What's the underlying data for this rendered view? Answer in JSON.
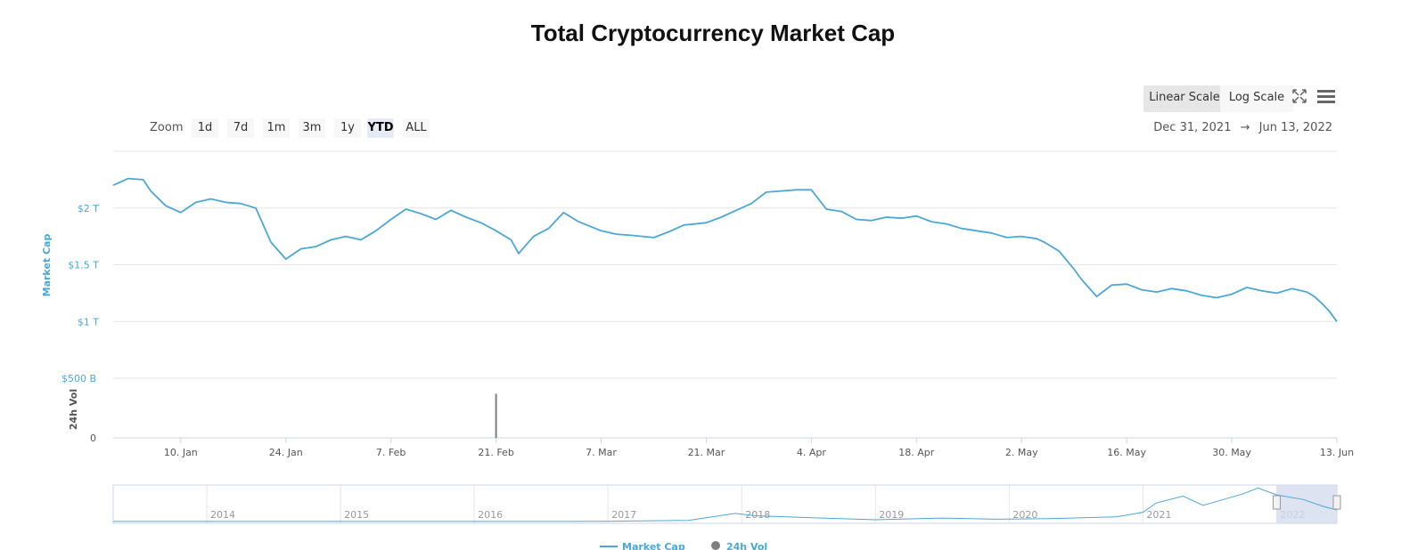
{
  "title": "Total Cryptocurrency Market Cap",
  "zoom": {
    "label": "Zoom",
    "buttons": [
      "1d",
      "7d",
      "1m",
      "3m",
      "1y",
      "YTD",
      "ALL"
    ],
    "selected": "YTD"
  },
  "scale_buttons": {
    "linear": "Linear Scale",
    "log": "Log Scale"
  },
  "range": {
    "from": "Dec 31, 2021",
    "arrow": "→",
    "to": "Jun 13, 2022"
  },
  "icons": {
    "fullscreen": "fullscreen-icon",
    "menu": "hamburger-menu-icon"
  },
  "colors": {
    "market_cap": "#4aa8d8",
    "volume": "#7f7f7f",
    "navigator_mask": "#d4dcee"
  },
  "chart_data": {
    "type": "line",
    "x_axis": {
      "tick_labels": [
        "10. Jan",
        "24. Jan",
        "7. Feb",
        "21. Feb",
        "7. Mar",
        "21. Mar",
        "4. Apr",
        "18. Apr",
        "2. May",
        "16. May",
        "30. May",
        "13. Jun"
      ],
      "tick_dates": [
        "2022-01-10",
        "2022-01-24",
        "2022-02-07",
        "2022-02-21",
        "2022-03-07",
        "2022-03-21",
        "2022-04-04",
        "2022-04-18",
        "2022-05-02",
        "2022-05-16",
        "2022-05-30",
        "2022-06-13"
      ],
      "range": [
        "2022-01-01",
        "2022-06-13"
      ]
    },
    "market_cap_axis": {
      "label": "Market Cap",
      "tick_labels": [
        "$1 T",
        "$1.5 T",
        "$2 T"
      ],
      "ticks": [
        1.0,
        1.5,
        2.0
      ],
      "unit": "T USD",
      "range": [
        0.5,
        2.5
      ]
    },
    "volume_axis": {
      "label": "24h Vol",
      "tick_labels": [
        "0",
        "$500 B"
      ],
      "ticks": [
        0,
        500
      ],
      "unit": "B USD",
      "range": [
        0,
        500
      ]
    },
    "series": [
      {
        "name": "Market Cap",
        "x": [
          "2022-01-01",
          "2022-01-03",
          "2022-01-05",
          "2022-01-06",
          "2022-01-08",
          "2022-01-10",
          "2022-01-12",
          "2022-01-14",
          "2022-01-16",
          "2022-01-18",
          "2022-01-20",
          "2022-01-21",
          "2022-01-22",
          "2022-01-24",
          "2022-01-26",
          "2022-01-28",
          "2022-01-30",
          "2022-02-01",
          "2022-02-03",
          "2022-02-05",
          "2022-02-07",
          "2022-02-09",
          "2022-02-11",
          "2022-02-13",
          "2022-02-15",
          "2022-02-17",
          "2022-02-19",
          "2022-02-21",
          "2022-02-23",
          "2022-02-24",
          "2022-02-26",
          "2022-02-28",
          "2022-03-02",
          "2022-03-04",
          "2022-03-07",
          "2022-03-09",
          "2022-03-11",
          "2022-03-14",
          "2022-03-16",
          "2022-03-18",
          "2022-03-21",
          "2022-03-23",
          "2022-03-25",
          "2022-03-27",
          "2022-03-29",
          "2022-03-31",
          "2022-04-02",
          "2022-04-04",
          "2022-04-06",
          "2022-04-08",
          "2022-04-10",
          "2022-04-12",
          "2022-04-14",
          "2022-04-16",
          "2022-04-18",
          "2022-04-20",
          "2022-04-22",
          "2022-04-24",
          "2022-04-26",
          "2022-04-28",
          "2022-04-30",
          "2022-05-02",
          "2022-05-04",
          "2022-05-05",
          "2022-05-07",
          "2022-05-09",
          "2022-05-10",
          "2022-05-12",
          "2022-05-14",
          "2022-05-16",
          "2022-05-18",
          "2022-05-20",
          "2022-05-22",
          "2022-05-24",
          "2022-05-26",
          "2022-05-28",
          "2022-05-30",
          "2022-06-01",
          "2022-06-03",
          "2022-06-05",
          "2022-06-07",
          "2022-06-09",
          "2022-06-10",
          "2022-06-11",
          "2022-06-12",
          "2022-06-13"
        ],
        "values": [
          2.2,
          2.26,
          2.25,
          2.15,
          2.02,
          1.96,
          2.05,
          2.08,
          2.05,
          2.04,
          2.0,
          1.85,
          1.7,
          1.55,
          1.64,
          1.66,
          1.72,
          1.75,
          1.72,
          1.8,
          1.9,
          1.99,
          1.95,
          1.9,
          1.98,
          1.92,
          1.87,
          1.8,
          1.72,
          1.6,
          1.75,
          1.82,
          1.96,
          1.88,
          1.8,
          1.77,
          1.76,
          1.74,
          1.79,
          1.85,
          1.87,
          1.92,
          1.98,
          2.04,
          2.14,
          2.15,
          2.16,
          2.16,
          1.99,
          1.97,
          1.9,
          1.89,
          1.92,
          1.91,
          1.93,
          1.88,
          1.86,
          1.82,
          1.8,
          1.78,
          1.74,
          1.75,
          1.73,
          1.7,
          1.62,
          1.46,
          1.37,
          1.22,
          1.32,
          1.33,
          1.28,
          1.26,
          1.29,
          1.27,
          1.23,
          1.21,
          1.24,
          1.3,
          1.27,
          1.25,
          1.29,
          1.26,
          1.22,
          1.16,
          1.09,
          1.0
        ]
      },
      {
        "name": "24h Vol",
        "x": [
          "2022-02-21"
        ],
        "values": [
          370
        ]
      }
    ],
    "navigator": {
      "tick_labels": [
        "2014",
        "2015",
        "2016",
        "2017",
        "2018",
        "2019",
        "2020",
        "2021",
        "2022"
      ],
      "years": [
        2014,
        2015,
        2016,
        2017,
        2018,
        2019,
        2020,
        2021,
        2022
      ],
      "range": [
        2013.3,
        2022.45
      ],
      "history_years": [
        2013.3,
        2016.5,
        2017.0,
        2017.6,
        2017.95,
        2018.1,
        2018.6,
        2019.0,
        2019.5,
        2019.9,
        2020.3,
        2020.8,
        2021.0,
        2021.1,
        2021.3,
        2021.45,
        2021.6,
        2021.75,
        2021.86,
        2022.0,
        2022.2,
        2022.35,
        2022.45
      ],
      "history_values": [
        0.005,
        0.01,
        0.02,
        0.1,
        0.7,
        0.5,
        0.3,
        0.15,
        0.3,
        0.2,
        0.25,
        0.4,
        0.8,
        1.6,
        2.2,
        1.4,
        1.9,
        2.4,
        2.9,
        2.3,
        1.9,
        1.3,
        1.0
      ],
      "selected_range": [
        2022.0,
        2022.45
      ]
    },
    "legend": {
      "placement": "bottom-center",
      "entries": [
        "Market Cap",
        "24h Vol"
      ]
    },
    "grid": true
  }
}
